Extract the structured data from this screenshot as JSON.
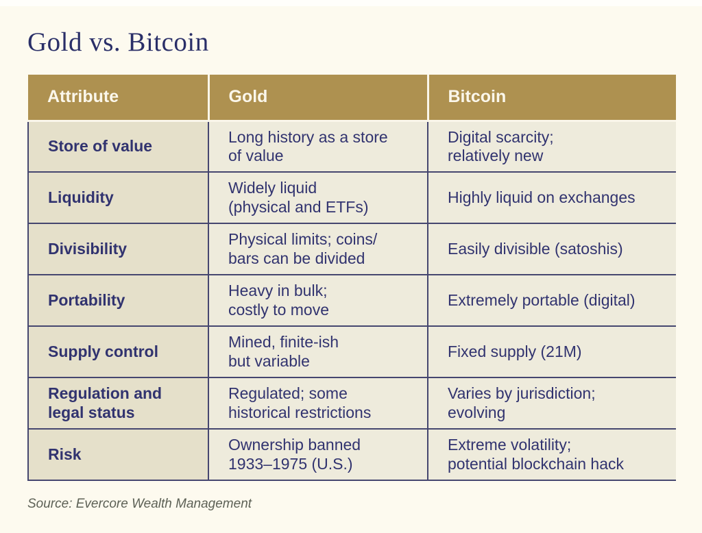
{
  "page": {
    "title": "Gold vs. Bitcoin",
    "source": "Source: Evercore Wealth Management"
  },
  "colors": {
    "page_background": "#fdfaef",
    "header_background": "#ae9150",
    "header_text": "#fbf7eb",
    "attribute_cell_background": "#e5e0ca",
    "data_cell_background": "#eeebdc",
    "body_text": "#31336f",
    "title_text": "#2a2f68",
    "row_border": "#45466f",
    "source_text": "#5d6156"
  },
  "table": {
    "columns": [
      "Attribute",
      "Gold",
      "Bitcoin"
    ],
    "rows": [
      {
        "attribute": "Store of value",
        "gold": "Long history as a store\nof value",
        "bitcoin": "Digital scarcity;\nrelatively new"
      },
      {
        "attribute": "Liquidity",
        "gold": "Widely liquid\n(physical and ETFs)",
        "bitcoin": "Highly liquid on exchanges"
      },
      {
        "attribute": "Divisibility",
        "gold": "Physical limits; coins/\nbars can be divided",
        "bitcoin": "Easily divisible (satoshis)"
      },
      {
        "attribute": "Portability",
        "gold": "Heavy in bulk;\ncostly to move",
        "bitcoin": "Extremely portable (digital)"
      },
      {
        "attribute": "Supply control",
        "gold": "Mined, finite-ish\nbut variable",
        "bitcoin": "Fixed supply (21M)"
      },
      {
        "attribute": "Regulation and\nlegal status",
        "gold": "Regulated; some\nhistorical restrictions",
        "bitcoin": "Varies by jurisdiction;\nevolving"
      },
      {
        "attribute": "Risk",
        "gold": "Ownership banned\n1933–1975 (U.S.)",
        "bitcoin": "Extreme volatility;\npotential blockchain hack"
      }
    ]
  }
}
